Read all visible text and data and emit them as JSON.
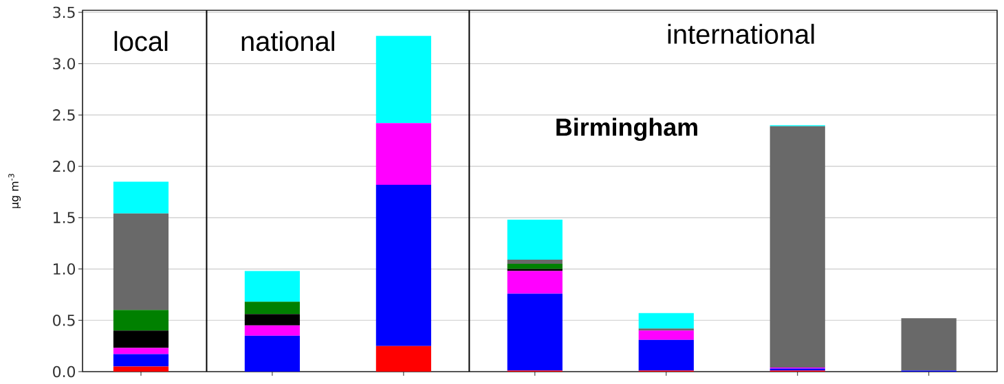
{
  "chart_data": {
    "type": "bar",
    "stacked": true,
    "ylabel": "μg m$^{-3}$",
    "categories": [
      null,
      null,
      null,
      null,
      null,
      null,
      null
    ],
    "series": [
      {
        "color": "#ff0000",
        "values": [
          0.05,
          0,
          0.25,
          0.01,
          0.01,
          0.01,
          0
        ]
      },
      {
        "color": "#0000ff",
        "values": [
          0.12,
          0.35,
          1.57,
          0.75,
          0.3,
          0.02,
          0.01
        ]
      },
      {
        "color": "#ff00ff",
        "values": [
          0.06,
          0.1,
          0.6,
          0.22,
          0.09,
          0.01,
          0
        ]
      },
      {
        "color": "#000000",
        "values": [
          0.17,
          0.11,
          0,
          0.02,
          0,
          0,
          0
        ]
      },
      {
        "color": "#008000",
        "values": [
          0.2,
          0.12,
          0,
          0.05,
          0,
          0,
          0
        ]
      },
      {
        "color": "#696969",
        "values": [
          0.94,
          0,
          0,
          0.04,
          0.02,
          2.35,
          0.51
        ]
      },
      {
        "color": "#00ffff",
        "values": [
          0.31,
          0.3,
          0.85,
          0.39,
          0.15,
          0.01,
          0
        ]
      }
    ],
    "ylim": [
      0,
      3.52
    ],
    "yticks": [
      {
        "value": 0,
        "label": "0.0"
      },
      {
        "value": 0.5,
        "label": "0.5"
      },
      {
        "value": 1,
        "label": "1.0"
      },
      {
        "value": 1.5,
        "label": "1.5"
      },
      {
        "value": 2,
        "label": "2.0"
      },
      {
        "value": 2.5,
        "label": "2.5"
      },
      {
        "value": 3,
        "label": "3.0"
      },
      {
        "value": 3.5,
        "label": "3.5"
      }
    ],
    "grid": "y",
    "tick_labels": "y",
    "annotations": [
      "local",
      "national",
      "international",
      "Birmingham"
    ]
  }
}
